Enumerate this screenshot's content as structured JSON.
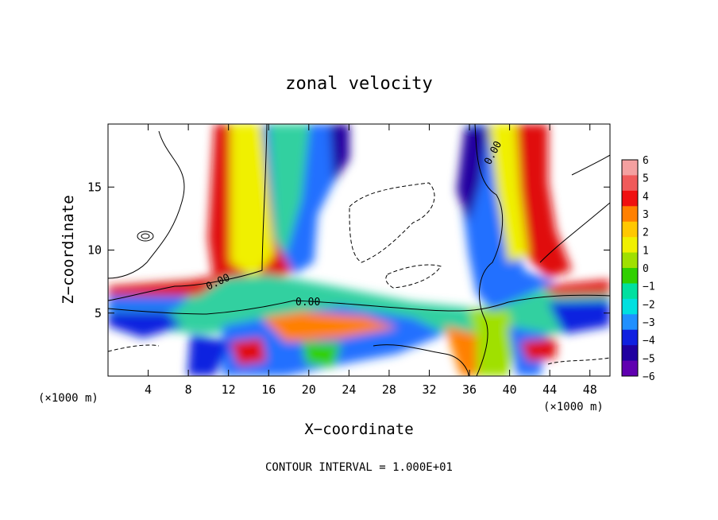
{
  "chart_data": {
    "type": "heatmap",
    "title": "zonal velocity",
    "xlabel": "X−coordinate",
    "ylabel": "Z−coordinate",
    "x_unit": "(×1000 m)",
    "z_unit": "(×1000 m)",
    "xlim": [
      0,
      50
    ],
    "ylim": [
      0,
      20
    ],
    "x_ticks": [
      4,
      8,
      12,
      16,
      20,
      24,
      28,
      32,
      36,
      40,
      44,
      48
    ],
    "x_tick_labels": [
      "4",
      "8",
      "12",
      "16",
      "20",
      "24",
      "28",
      "32",
      "36",
      "40",
      "44",
      "48"
    ],
    "y_ticks": [
      5,
      10,
      15
    ],
    "y_tick_labels": [
      "5",
      "10",
      "15"
    ],
    "colorbar": {
      "levels": [
        6,
        5,
        4,
        3,
        2,
        1,
        0,
        -1,
        -2,
        -3,
        -4,
        -5,
        -6
      ],
      "labels": [
        "6",
        "5",
        "4",
        "3",
        "2",
        "1",
        "0",
        "−1",
        "−2",
        "−3",
        "−4",
        "−5",
        "−6"
      ],
      "colors": [
        "#f4a0a0",
        "#f05a5a",
        "#f01010",
        "#ff8000",
        "#ffc800",
        "#f0f000",
        "#a0e000",
        "#30d000",
        "#00e0a0",
        "#00e0e0",
        "#2090ff",
        "#1020e0",
        "#2000a0",
        "#6000b0"
      ]
    },
    "contour_labels": [
      "0.00",
      "0.00",
      "0.00"
    ],
    "footnote": "CONTOUR INTERVAL = 1.000E+01",
    "grid": false
  }
}
